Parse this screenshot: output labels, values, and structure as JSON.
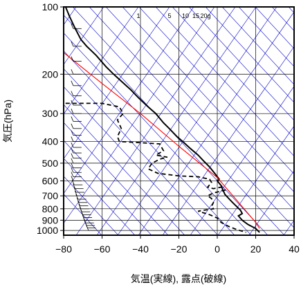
{
  "chart_data": {
    "type": "line",
    "xlabel": "気温(実線), 露点(破線)",
    "ylabel": "気圧(hPa)",
    "xlim": [
      -80,
      40
    ],
    "ylim": [
      1050,
      100
    ],
    "y_scale": "log",
    "x_ticks": [
      -80,
      -60,
      -40,
      -20,
      0,
      20,
      40
    ],
    "x_tick_labels": [
      "−80",
      "−60",
      "−40",
      "−20",
      "0",
      "20",
      "40"
    ],
    "y_ticks": [
      100,
      200,
      300,
      400,
      500,
      600,
      700,
      800,
      900,
      1000
    ],
    "y_tick_labels": [
      "100",
      "200",
      "300",
      "400",
      "500",
      "600",
      "700",
      "800",
      "900",
      "1000"
    ],
    "mixing_ratio_labels": [
      {
        "w": 1,
        "label": "1"
      },
      {
        "w": 5,
        "label": "5"
      },
      {
        "w": 10,
        "label": "10"
      },
      {
        "w": 15,
        "label": "15"
      },
      {
        "w": 20,
        "label": "20g"
      }
    ],
    "colors": {
      "temperature": "#000000",
      "dewpoint": "#000000",
      "parcel": "#ff0000",
      "dry_adiabat": "#0000cc",
      "mixing_ratio": "#0000cc",
      "grid": "#000000"
    },
    "series": [
      {
        "style": "solid",
        "points": [
          [
            -79,
            100
          ],
          [
            -77,
            110
          ],
          [
            -74,
            125
          ],
          [
            -71,
            140
          ],
          [
            -68,
            150
          ],
          [
            -63,
            165
          ],
          [
            -58,
            185
          ],
          [
            -54,
            200
          ],
          [
            -50,
            215
          ],
          [
            -45,
            235
          ],
          [
            -41,
            255
          ],
          [
            -36,
            280
          ],
          [
            -32,
            300
          ],
          [
            -28,
            330
          ],
          [
            -25,
            350
          ],
          [
            -21,
            380
          ],
          [
            -18,
            400
          ],
          [
            -14,
            430
          ],
          [
            -10,
            460
          ],
          [
            -7,
            490
          ],
          [
            -4,
            520
          ],
          [
            -1,
            560
          ],
          [
            1,
            590
          ],
          [
            0,
            600
          ],
          [
            2,
            630
          ],
          [
            3,
            660
          ],
          [
            4,
            690
          ],
          [
            6,
            720
          ],
          [
            8,
            750
          ],
          [
            10,
            780
          ],
          [
            12,
            810
          ],
          [
            13,
            840
          ],
          [
            11,
            860
          ],
          [
            13,
            900
          ],
          [
            16,
            940
          ],
          [
            20,
            980
          ],
          [
            22,
            1020
          ]
        ]
      },
      {
        "style": "dashed",
        "points": [
          [
            -79,
            270
          ],
          [
            -60,
            270
          ],
          [
            -51,
            280
          ],
          [
            -49,
            300
          ],
          [
            -52,
            320
          ],
          [
            -50,
            350
          ],
          [
            -52,
            380
          ],
          [
            -51,
            400
          ],
          [
            -40,
            405
          ],
          [
            -30,
            410
          ],
          [
            -28,
            440
          ],
          [
            -32,
            460
          ],
          [
            -26,
            470
          ],
          [
            -30,
            480
          ],
          [
            -34,
            500
          ],
          [
            -36,
            530
          ],
          [
            -31,
            555
          ],
          [
            -20,
            570
          ],
          [
            -10,
            575
          ],
          [
            -4,
            590
          ],
          [
            -3,
            610
          ],
          [
            -5,
            640
          ],
          [
            -2,
            650
          ],
          [
            2,
            640
          ],
          [
            4,
            660
          ],
          [
            -2,
            680
          ],
          [
            -5,
            700
          ],
          [
            -3,
            720
          ],
          [
            -2,
            750
          ],
          [
            -3,
            780
          ],
          [
            -2,
            800
          ],
          [
            -10,
            820
          ],
          [
            -4,
            850
          ],
          [
            0,
            880
          ],
          [
            2,
            920
          ],
          [
            6,
            960
          ],
          [
            10,
            990
          ],
          [
            15,
            1020
          ]
        ]
      },
      {
        "style": "parcel",
        "points": [
          [
            -80,
            160
          ],
          [
            -60,
            220
          ],
          [
            -40,
            300
          ],
          [
            -20,
            420
          ],
          [
            0,
            580
          ],
          [
            20,
            920
          ],
          [
            22,
            980
          ]
        ]
      }
    ]
  }
}
